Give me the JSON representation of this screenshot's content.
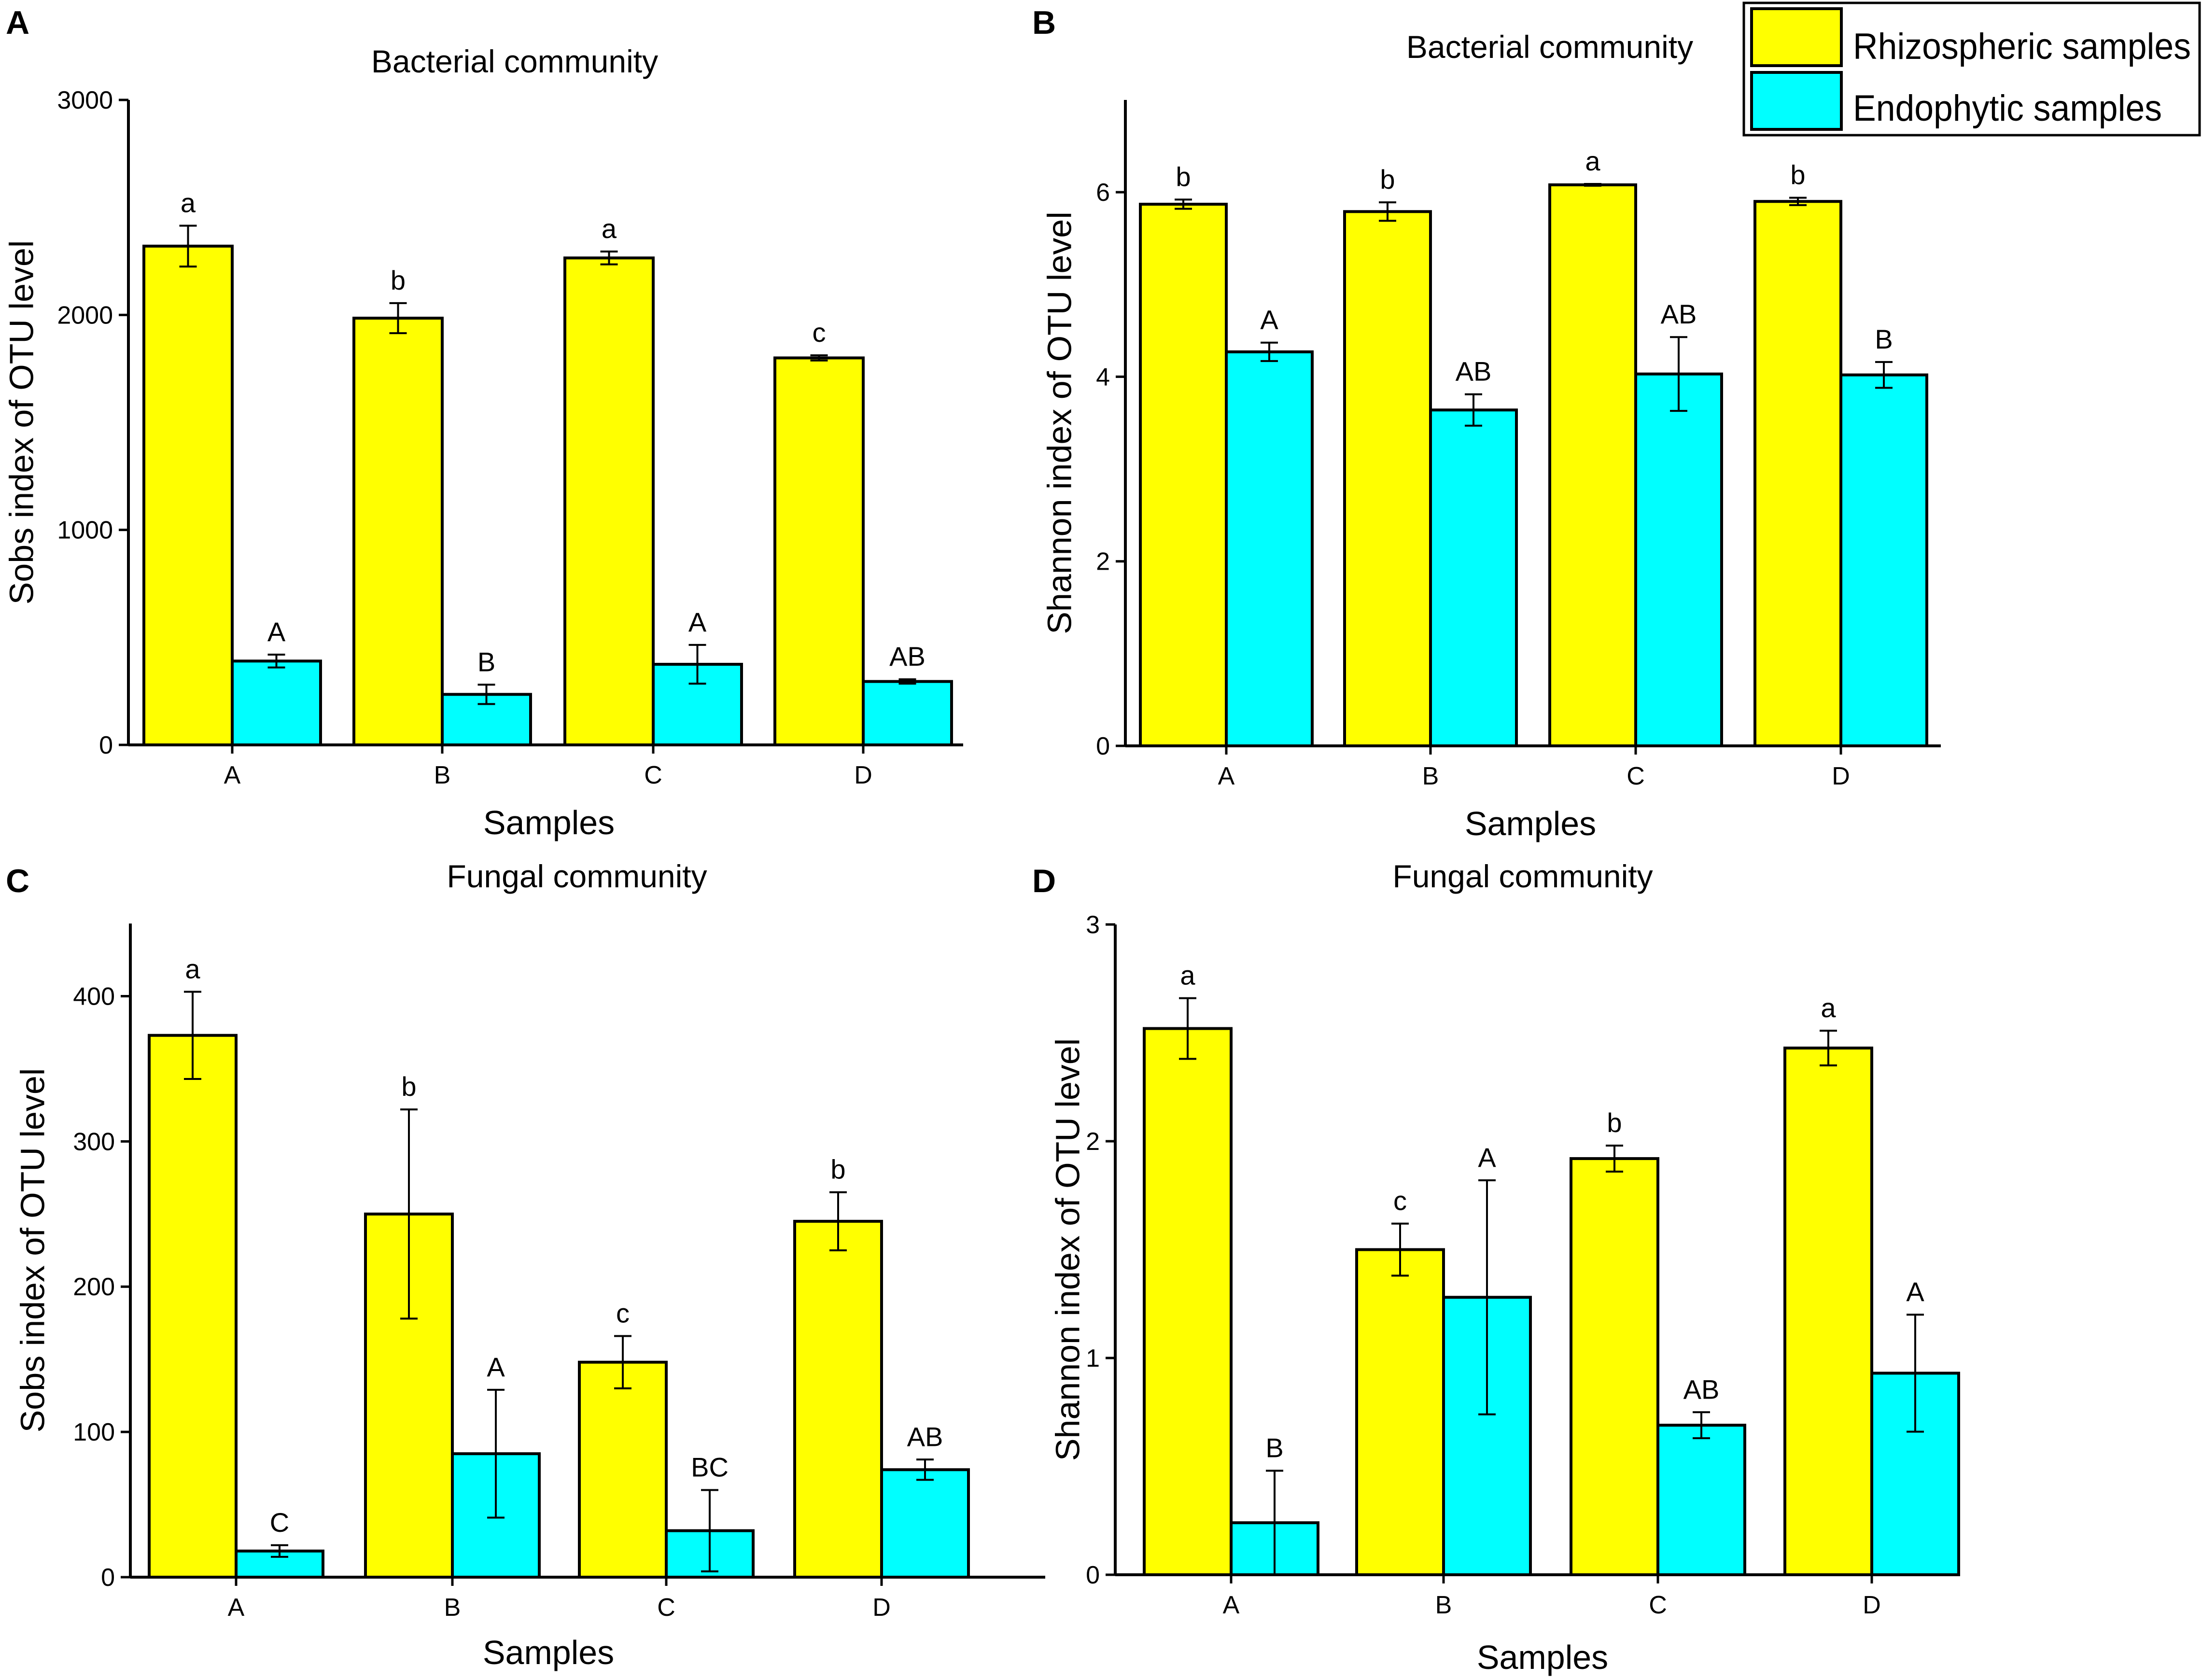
{
  "figure": {
    "legend": {
      "entries": [
        "Rhizospheric samples",
        "Endophytic samples"
      ],
      "colors": [
        "#ffff00",
        "#00ffff"
      ]
    }
  },
  "chart_data": [
    {
      "panel_letter": "A",
      "type": "bar",
      "title": "Bacterial community",
      "xlabel": "Samples",
      "ylabel": "Sobs index of OTU level",
      "ylim": [
        0,
        3000
      ],
      "yticks": [
        0,
        1000,
        2000,
        3000
      ],
      "ytick_labels": [
        "0",
        "1000",
        "2000",
        "3000"
      ],
      "categories": [
        "A",
        "B",
        "C",
        "D"
      ],
      "series": [
        {
          "name": "Rhizospheric samples",
          "color": "#ffff00",
          "values": [
            2320,
            1985,
            2265,
            1800
          ],
          "errors": [
            95,
            70,
            30,
            12
          ],
          "labels": [
            "a",
            "b",
            "a",
            "c"
          ]
        },
        {
          "name": "Endophytic samples",
          "color": "#00ffff",
          "values": [
            390,
            235,
            375,
            295
          ],
          "errors": [
            30,
            45,
            90,
            10
          ],
          "labels": [
            "A",
            "B",
            "A",
            "AB"
          ]
        }
      ]
    },
    {
      "panel_letter": "B",
      "type": "bar",
      "title": "Bacterial community",
      "xlabel": "Samples",
      "ylabel": "Shannon index of OTU level",
      "ylim": [
        0,
        7
      ],
      "yticks": [
        0,
        2,
        4,
        6
      ],
      "ytick_labels": [
        "0",
        "2",
        "4",
        "6"
      ],
      "categories": [
        "A",
        "B",
        "C",
        "D"
      ],
      "series": [
        {
          "name": "Rhizospheric samples",
          "color": "#ffff00",
          "values": [
            5.87,
            5.79,
            6.08,
            5.9
          ],
          "errors": [
            0.05,
            0.1,
            0.01,
            0.04
          ],
          "labels": [
            "b",
            "b",
            "a",
            "b"
          ]
        },
        {
          "name": "Endophytic samples",
          "color": "#00ffff",
          "values": [
            4.27,
            3.64,
            4.03,
            4.02
          ],
          "errors": [
            0.1,
            0.17,
            0.4,
            0.14
          ],
          "labels": [
            "A",
            "AB",
            "AB",
            "B"
          ]
        }
      ]
    },
    {
      "panel_letter": "C",
      "type": "bar",
      "title": "Fungal community",
      "xlabel": "Samples",
      "ylabel": "Sobs index of OTU level",
      "ylim": [
        0,
        450
      ],
      "yticks": [
        0,
        100,
        200,
        300,
        400
      ],
      "ytick_labels": [
        "0",
        "100",
        "200",
        "300",
        "400"
      ],
      "categories": [
        "A",
        "B",
        "C",
        "D"
      ],
      "series": [
        {
          "name": "Rhizospheric samples",
          "color": "#ffff00",
          "values": [
            373,
            250,
            148,
            245
          ],
          "errors": [
            30,
            72,
            18,
            20
          ],
          "labels": [
            "a",
            "b",
            "c",
            "b"
          ]
        },
        {
          "name": "Endophytic samples",
          "color": "#00ffff",
          "values": [
            18,
            85,
            32,
            74
          ],
          "errors": [
            4,
            44,
            28,
            7
          ],
          "labels": [
            "C",
            "A",
            "BC",
            "AB"
          ]
        }
      ]
    },
    {
      "panel_letter": "D",
      "type": "bar",
      "title": "Fungal community",
      "xlabel": "Samples",
      "ylabel": "Shannon index of OTU level",
      "ylim": [
        0,
        3
      ],
      "yticks": [
        0,
        1,
        2,
        3
      ],
      "ytick_labels": [
        "0",
        "1",
        "2",
        "3"
      ],
      "categories": [
        "A",
        "B",
        "C",
        "D"
      ],
      "series": [
        {
          "name": "Rhizospheric samples",
          "color": "#ffff00",
          "values": [
            2.52,
            1.5,
            1.92,
            2.43
          ],
          "errors": [
            0.14,
            0.12,
            0.06,
            0.08
          ],
          "labels": [
            "a",
            "c",
            "b",
            "a"
          ]
        },
        {
          "name": "Endophytic samples",
          "color": "#00ffff",
          "values": [
            0.24,
            1.28,
            0.69,
            0.93
          ],
          "errors": [
            0.24,
            0.54,
            0.06,
            0.27
          ],
          "labels": [
            "B",
            "A",
            "AB",
            "A"
          ]
        }
      ]
    }
  ]
}
